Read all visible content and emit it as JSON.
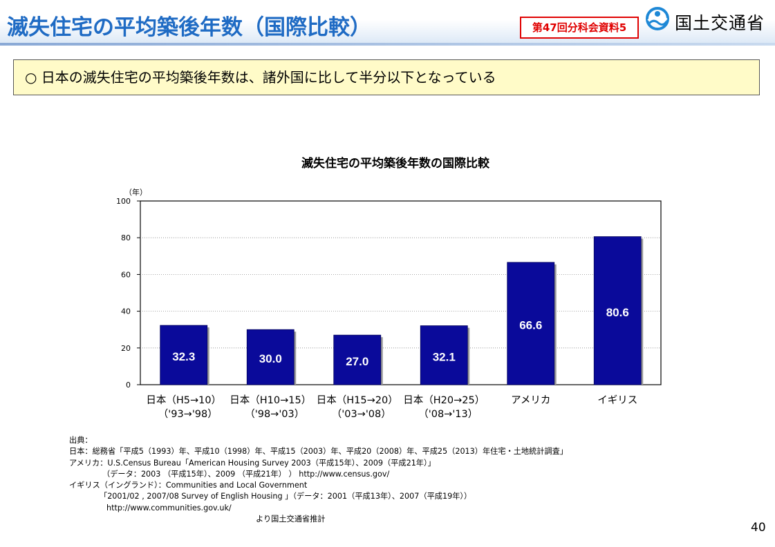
{
  "header": {
    "title": "滅失住宅の平均築後年数（国際比較）",
    "badge": "第47回分科会資料5",
    "logo_text": "国土交通省",
    "logo_icon": "mlit-wave-icon"
  },
  "summary": "○ 日本の滅失住宅の平均築後年数は、諸外国に比して半分以下となっている",
  "chart_data": {
    "type": "bar",
    "title": "滅失住宅の平均築後年数の国際比較",
    "ylabel": "（年）",
    "ylim": [
      0,
      100
    ],
    "yticks": [
      0,
      20,
      40,
      60,
      80,
      100
    ],
    "grid": true,
    "categories": [
      [
        "日本（H5→10）",
        "（'93→'98）"
      ],
      [
        "日本（H10→15）",
        "（'98→'03）"
      ],
      [
        "日本（H15→20）",
        "（'03→'08）"
      ],
      [
        "日本（H20→25）",
        "（'08→'13）"
      ],
      [
        "アメリカ",
        ""
      ],
      [
        "イギリス",
        ""
      ]
    ],
    "values": [
      32.3,
      30.0,
      27.0,
      32.1,
      66.6,
      80.6
    ],
    "value_labels": [
      "32.3",
      "30.0",
      "27.0",
      "32.1",
      "66.6",
      "80.6"
    ],
    "bar_color": "#0a0a9a",
    "label_color": "#ffffff"
  },
  "sources": {
    "lines": [
      "出典：",
      "日本：総務省「平成5（1993）年、平成10（1998）年、平成15（2003）年、平成20（2008）年、平成25（2013）年住宅・土地統計調査」",
      "アメリカ：U.S.Census Bureau「American Housing Survey 2003（平成15年）、2009（平成21年）」",
      "（データ：2003 （平成15年）、2009 （平成21年） ） http://www.census.gov/",
      "イギリス（イングランド）：Communities and Local Government",
      "「2001/02 , 2007/08 Survey of English Housing 」（データ：2001（平成13年）、2007（平成19年））",
      "http://www.communities.gov.uk/",
      "より国土交通省推計"
    ]
  },
  "page_number": "40"
}
